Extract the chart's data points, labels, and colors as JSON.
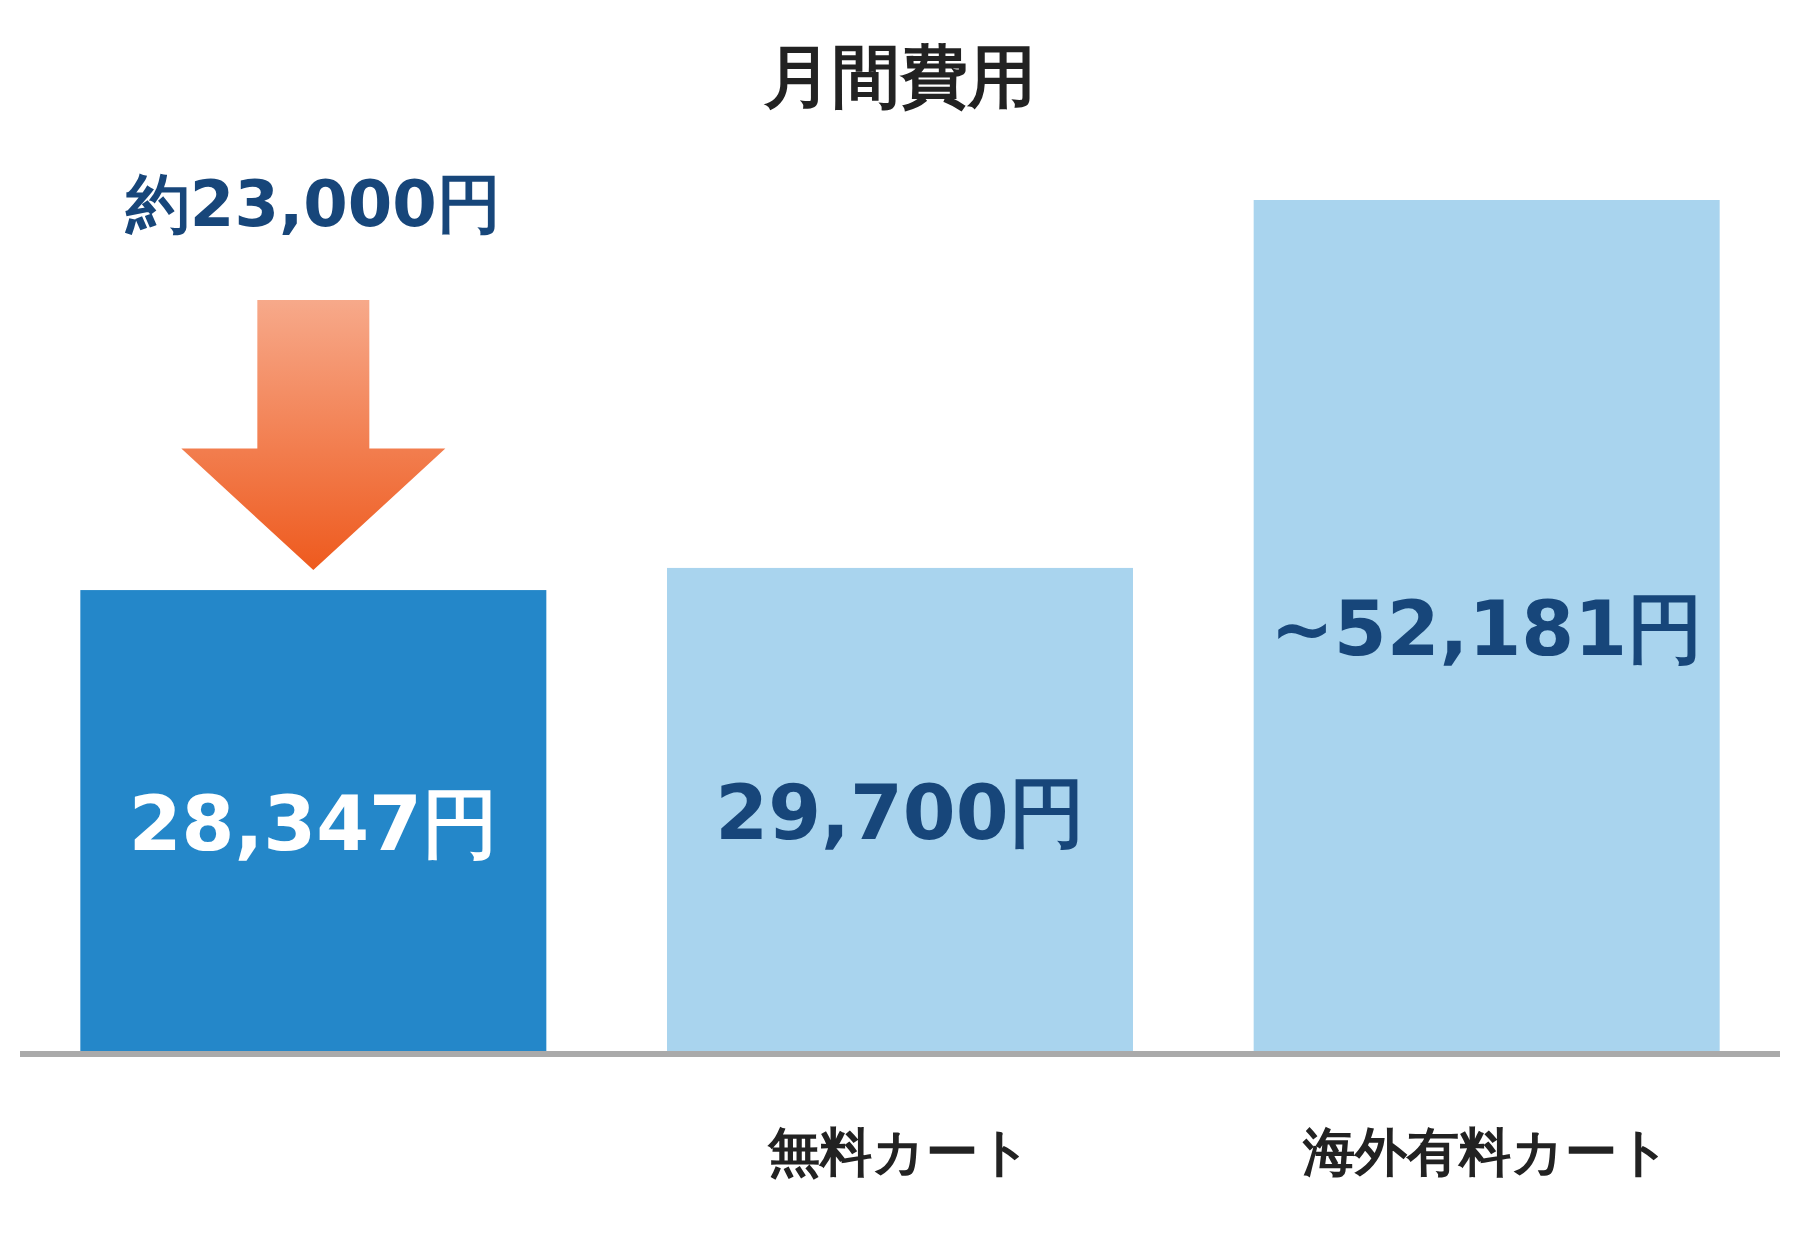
{
  "chart_data": {
    "type": "bar",
    "title": "月間費用",
    "categories": [
      null,
      "無料カート",
      "海外有料カート"
    ],
    "values": [
      28347,
      29700,
      52181
    ],
    "colors": [
      "#2487c9",
      "#a9d4ee",
      "#a9d4ee"
    ],
    "value_labels": [
      "28,347円",
      "29,700円",
      "~52,181円"
    ],
    "annotations": [
      "約23,000円"
    ]
  }
}
